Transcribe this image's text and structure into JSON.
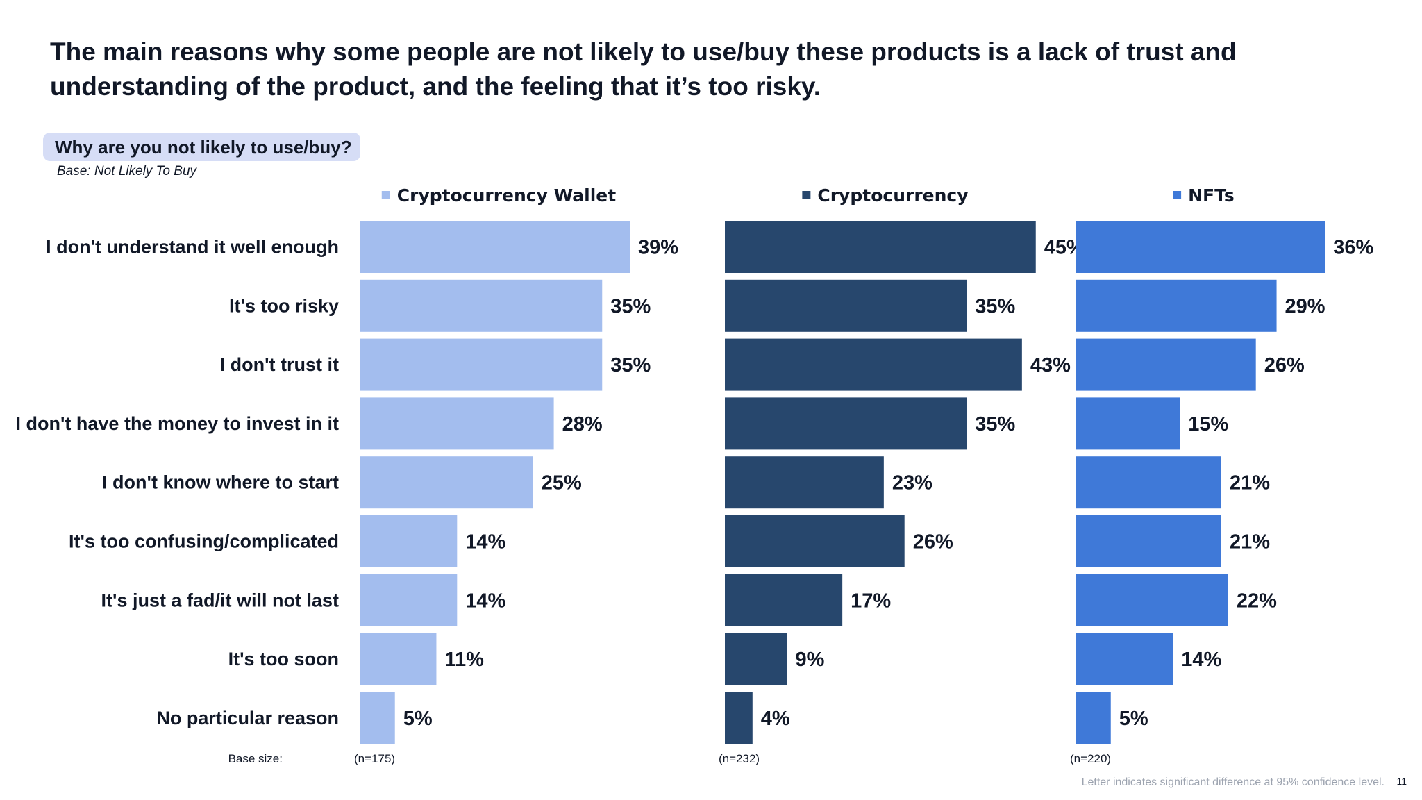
{
  "headline": "The main reasons why some people are not likely to use/buy these products is a lack of trust and understanding of the product, and the feeling that it’s too risky.",
  "question": "Why are you not likely to use/buy?",
  "base_note": "Base: Not Likely To Buy",
  "footnote": "Letter indicates significant difference at 95% confidence level.",
  "page_number": "11",
  "chart_data": {
    "type": "bar",
    "orientation": "horizontal",
    "categories": [
      "I don't understand it well enough",
      "It's too risky",
      "I don't trust it",
      "I don't have the money to invest in it",
      "I don't know where to start",
      "It's too confusing/complicated",
      "It's just a fad/it will not last",
      "It's too soon",
      "No particular reason"
    ],
    "series": [
      {
        "name": "Cryptocurrency Wallet",
        "color": "#a3bdee",
        "base": "(n=175)",
        "values": [
          39,
          35,
          35,
          28,
          25,
          14,
          14,
          11,
          5
        ]
      },
      {
        "name": "Cryptocurrency",
        "color": "#27476d",
        "base": "(n=232)",
        "values": [
          45,
          35,
          43,
          35,
          23,
          26,
          17,
          9,
          4
        ]
      },
      {
        "name": "NFTs",
        "color": "#3f79d8",
        "base": "(n=220)",
        "values": [
          36,
          29,
          26,
          15,
          21,
          21,
          22,
          14,
          5
        ]
      }
    ],
    "value_suffix": "%",
    "base_label": "Base size:",
    "legend_position": "top",
    "grid": false
  }
}
